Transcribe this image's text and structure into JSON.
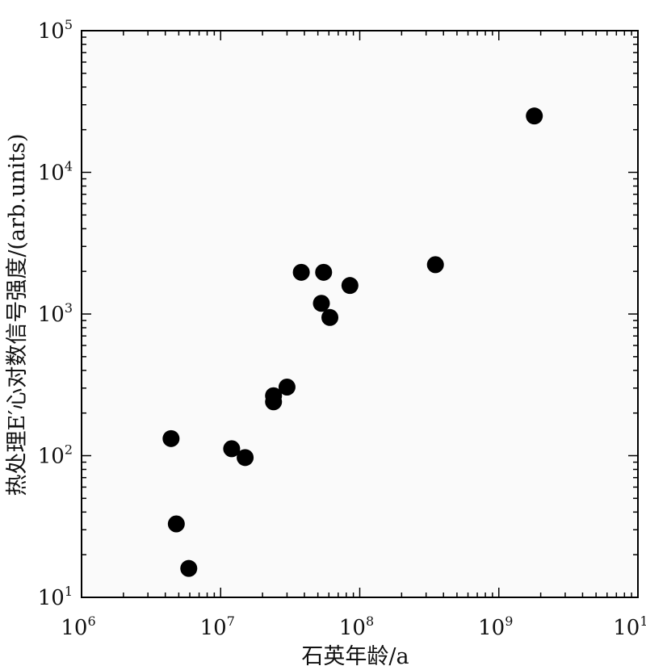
{
  "chart_data": {
    "type": "scatter",
    "xlabel": "石英年龄/a",
    "ylabel": "热处理E′心对数信号强度/(arb.units)",
    "x_scale": "log",
    "y_scale": "log",
    "xlim": [
      1000000,
      10000000000
    ],
    "ylim": [
      10,
      100000
    ],
    "grid": false,
    "x_ticks": [
      {
        "base": "10",
        "exp": "6",
        "value": 1000000
      },
      {
        "base": "10",
        "exp": "7",
        "value": 10000000
      },
      {
        "base": "10",
        "exp": "8",
        "value": 100000000
      },
      {
        "base": "10",
        "exp": "9",
        "value": 1000000000
      },
      {
        "base": "10",
        "exp": "10",
        "value": 10000000000
      }
    ],
    "y_ticks": [
      {
        "base": "10",
        "exp": "1",
        "value": 10
      },
      {
        "base": "10",
        "exp": "2",
        "value": 100
      },
      {
        "base": "10",
        "exp": "3",
        "value": 1000
      },
      {
        "base": "10",
        "exp": "4",
        "value": 10000
      },
      {
        "base": "10",
        "exp": "5",
        "value": 100000
      }
    ],
    "points": [
      {
        "x": 4400000,
        "y": 132
      },
      {
        "x": 4800000,
        "y": 33
      },
      {
        "x": 5900000,
        "y": 16
      },
      {
        "x": 12000000,
        "y": 112
      },
      {
        "x": 15000000,
        "y": 97
      },
      {
        "x": 24000000,
        "y": 240
      },
      {
        "x": 24000000,
        "y": 265
      },
      {
        "x": 30000000,
        "y": 305
      },
      {
        "x": 38000000,
        "y": 1970
      },
      {
        "x": 55000000,
        "y": 1970
      },
      {
        "x": 53000000,
        "y": 1190
      },
      {
        "x": 61000000,
        "y": 945
      },
      {
        "x": 85000000,
        "y": 1590
      },
      {
        "x": 350000000,
        "y": 2230
      },
      {
        "x": 1800000000,
        "y": 25000
      }
    ],
    "marker_color": "#000000"
  }
}
